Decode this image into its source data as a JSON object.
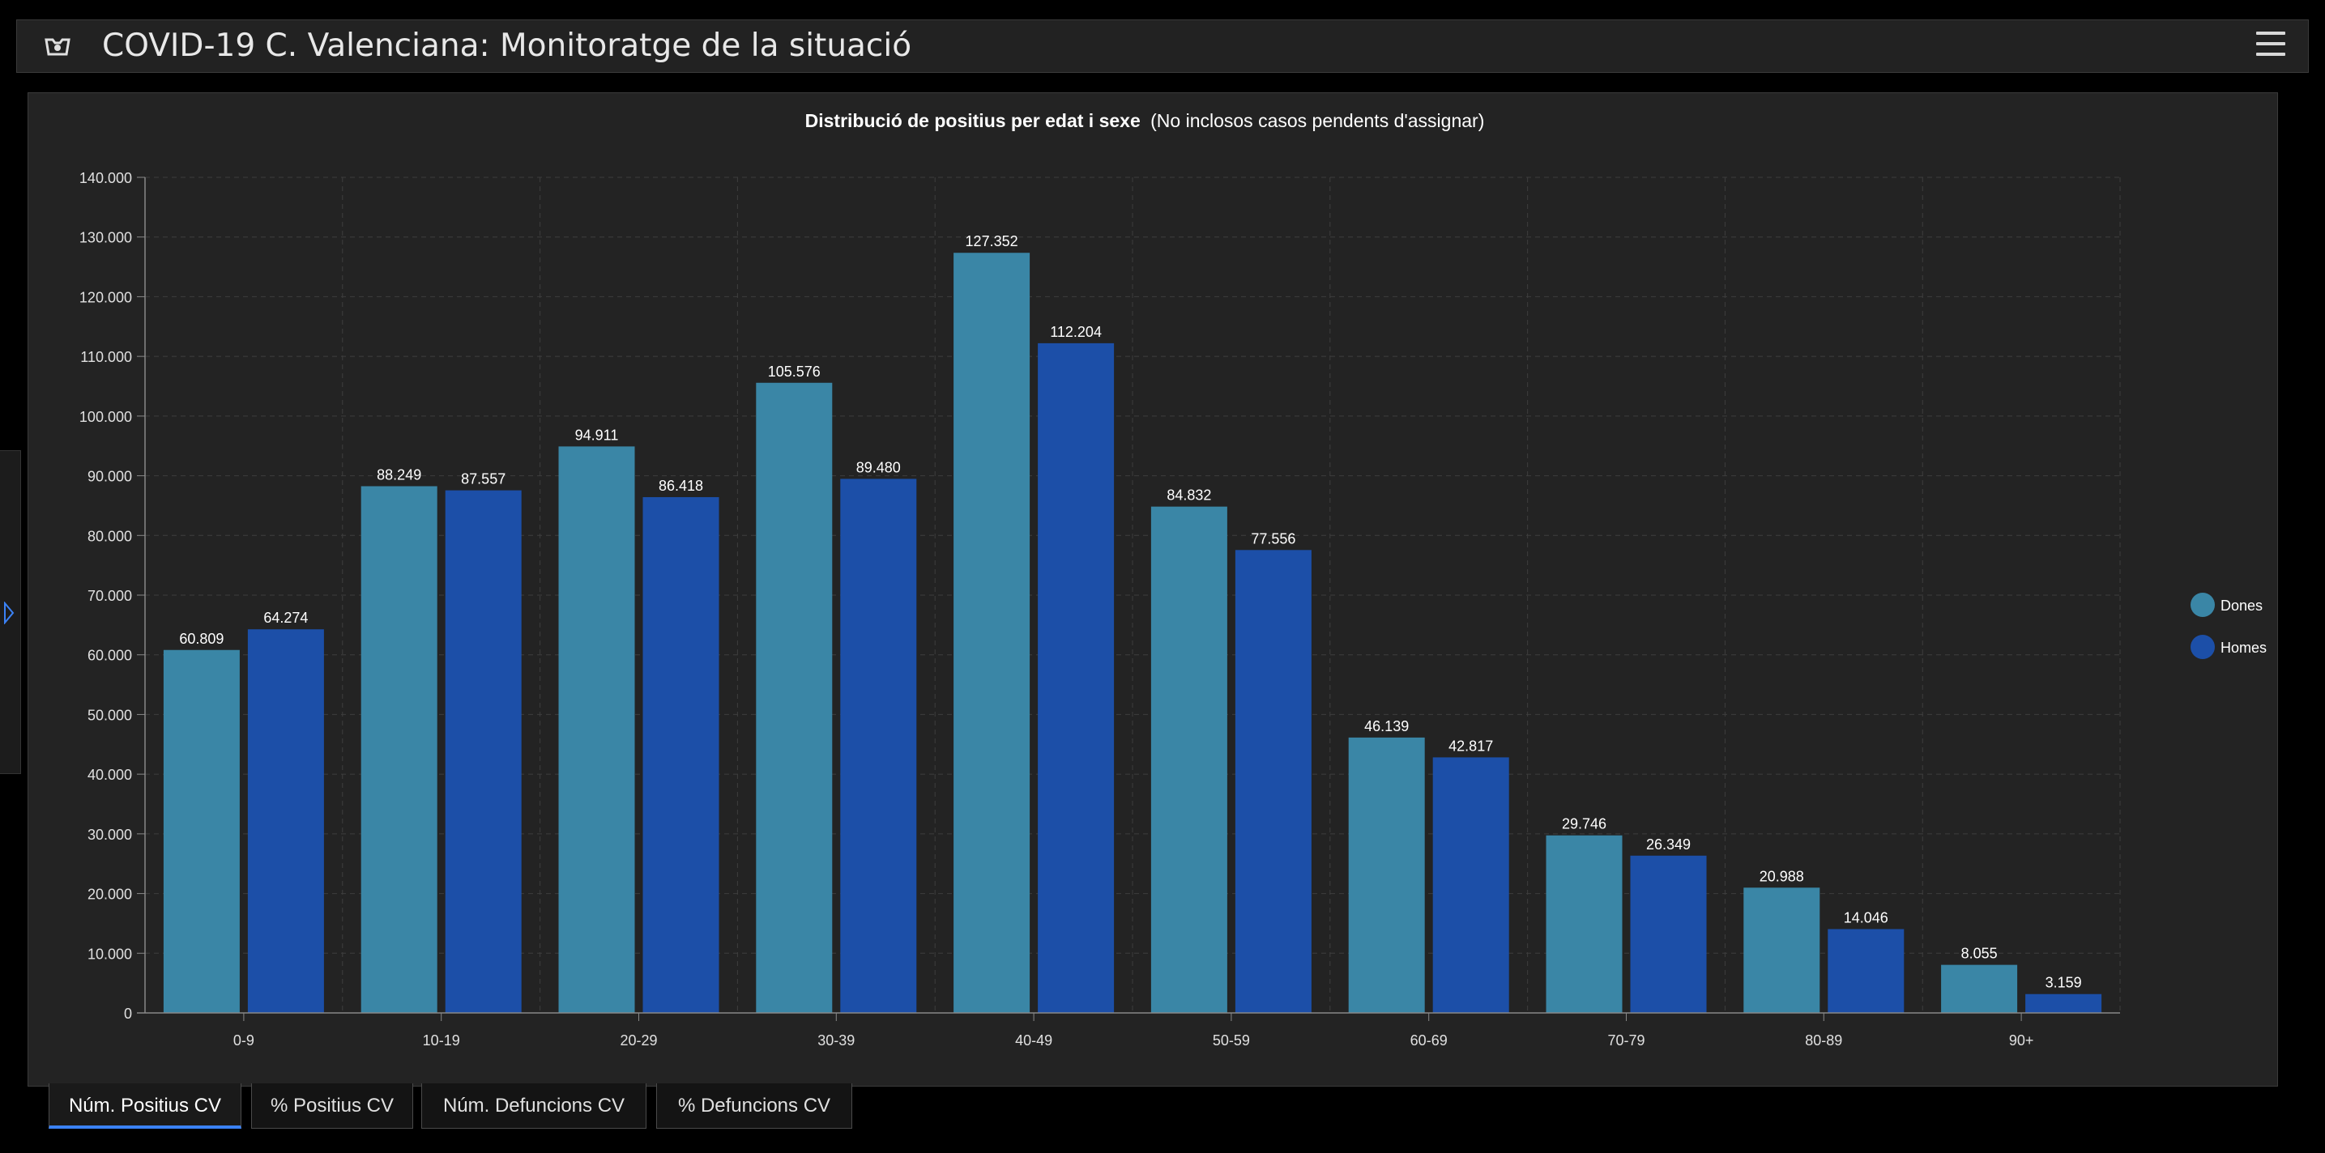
{
  "header": {
    "title": "COVID-19 C. Valenciana: Monitoratge de la situació",
    "logo_icon": "bat-shield-icon",
    "menu_icon": "hamburger-menu-icon"
  },
  "side_panel": {
    "toggle_icon": "chevron-right-icon"
  },
  "chart_data": {
    "type": "bar",
    "title": "Distribució de positius per edat i sexe",
    "subtitle": "(No inclosos casos pendents d'assignar)",
    "categories": [
      "0-9",
      "10-19",
      "20-29",
      "30-39",
      "40-49",
      "50-59",
      "60-69",
      "70-79",
      "80-89",
      "90+"
    ],
    "series": [
      {
        "name": "Dones",
        "color": "#3a86a6",
        "values": [
          60809,
          88249,
          94911,
          105576,
          127352,
          84832,
          46139,
          29746,
          20988,
          8055
        ]
      },
      {
        "name": "Homes",
        "color": "#1c4fa8",
        "values": [
          64274,
          87557,
          86418,
          89480,
          112204,
          77556,
          42817,
          26349,
          14046,
          3159
        ]
      }
    ],
    "ylim": [
      0,
      140000
    ],
    "yticks": [
      0,
      10000,
      20000,
      30000,
      40000,
      50000,
      60000,
      70000,
      80000,
      90000,
      100000,
      110000,
      120000,
      130000,
      140000
    ],
    "ytick_labels": [
      "0",
      "10.000",
      "20.000",
      "30.000",
      "40.000",
      "50.000",
      "60.000",
      "70.000",
      "80.000",
      "90.000",
      "100.000",
      "110.000",
      "120.000",
      "130.000",
      "140.000"
    ],
    "data_labels": [
      [
        "60.809",
        "88.249",
        "94.911",
        "105.576",
        "127.352",
        "84.832",
        "46.139",
        "29.746",
        "20.988",
        "8.055"
      ],
      [
        "64.274",
        "87.557",
        "86.418",
        "89.480",
        "112.204",
        "77.556",
        "42.817",
        "26.349",
        "14.046",
        "3.159"
      ]
    ],
    "grid": true,
    "legend_position": "right"
  },
  "tabs": [
    {
      "label": "Núm. Positius CV",
      "active": true
    },
    {
      "label": "% Positius CV",
      "active": false
    },
    {
      "label": "Núm. Defuncions CV",
      "active": false
    },
    {
      "label": "% Defuncions CV",
      "active": false
    }
  ]
}
